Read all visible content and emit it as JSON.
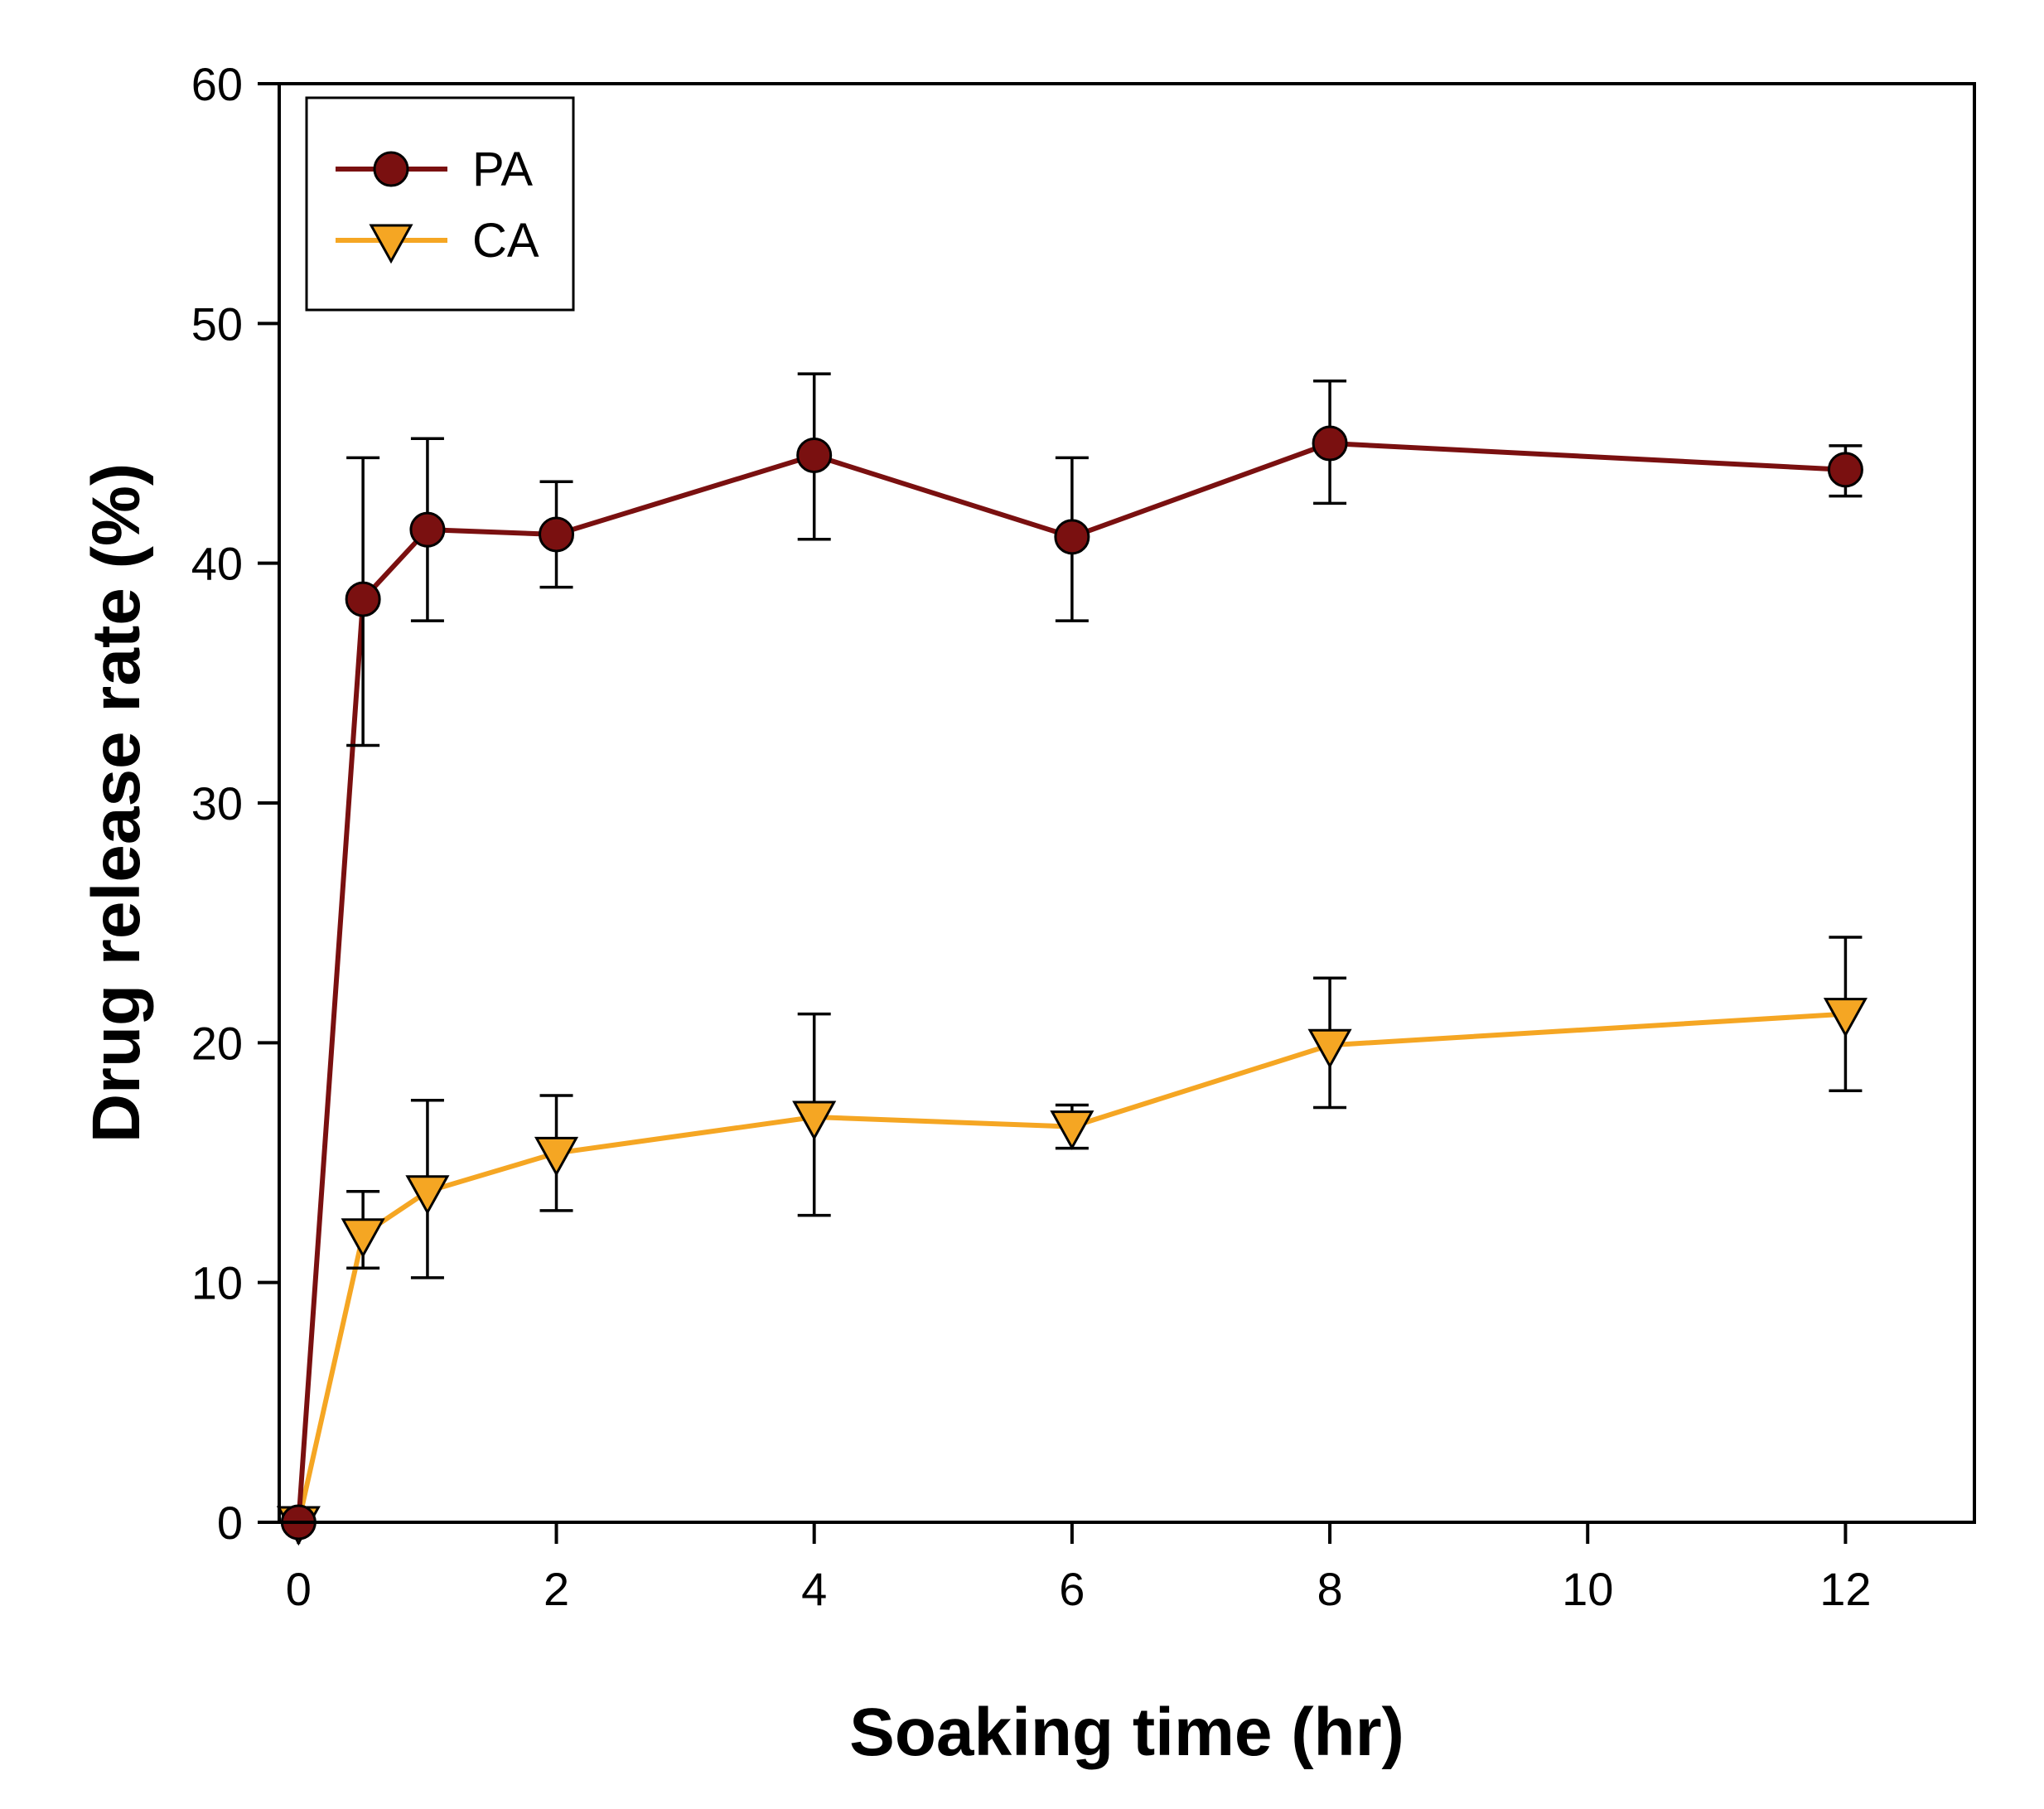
{
  "chart_data": {
    "type": "line",
    "title": "",
    "xlabel": "Soaking time (hr)",
    "ylabel": "Drug release rate (%)",
    "xlim": [
      -0.15,
      13
    ],
    "ylim": [
      0,
      60
    ],
    "xticks": [
      0,
      2,
      4,
      6,
      8,
      10,
      12
    ],
    "yticks": [
      0,
      10,
      20,
      30,
      40,
      50,
      60
    ],
    "grid": false,
    "legend_position": "top-left",
    "series": [
      {
        "name": "PA",
        "color": "#7a1010",
        "marker": "circle",
        "x": [
          0,
          0.5,
          1,
          2,
          4,
          6,
          8,
          12
        ],
        "y": [
          0,
          38.5,
          41.4,
          41.2,
          44.5,
          41.1,
          45.0,
          43.9
        ],
        "err_upper": [
          0,
          44.4,
          45.2,
          43.4,
          47.9,
          44.4,
          47.6,
          44.9
        ],
        "err_lower": [
          0,
          32.4,
          37.6,
          39.0,
          41.0,
          37.6,
          42.5,
          42.8
        ]
      },
      {
        "name": "CA",
        "color": "#f5a623",
        "marker": "triangle-down",
        "x": [
          0,
          0.5,
          1,
          2,
          4,
          6,
          8,
          12
        ],
        "y": [
          0,
          12.0,
          13.8,
          15.4,
          16.9,
          16.5,
          19.9,
          21.2
        ],
        "err_upper": [
          0,
          13.8,
          17.6,
          17.8,
          21.2,
          17.4,
          22.7,
          24.4
        ],
        "err_lower": [
          0,
          10.6,
          10.2,
          13.0,
          12.8,
          15.6,
          17.3,
          18.0
        ]
      }
    ]
  }
}
